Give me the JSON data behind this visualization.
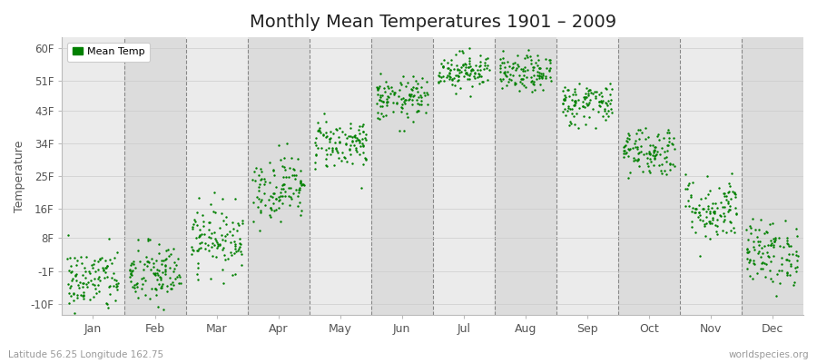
{
  "title": "Monthly Mean Temperatures 1901 – 2009",
  "ylabel": "Temperature",
  "yticks": [
    -10,
    -1,
    8,
    16,
    25,
    34,
    43,
    51,
    60
  ],
  "ytick_labels": [
    "-10F",
    "-1F",
    "8F",
    "16F",
    "25F",
    "34F",
    "43F",
    "51F",
    "60F"
  ],
  "ylim": [
    -13,
    63
  ],
  "months": [
    "Jan",
    "Feb",
    "Mar",
    "Apr",
    "May",
    "Jun",
    "Jul",
    "Aug",
    "Sep",
    "Oct",
    "Nov",
    "Dec"
  ],
  "month_centers": [
    1,
    2,
    3,
    4,
    5,
    6,
    7,
    8,
    9,
    10,
    11,
    12
  ],
  "dot_color": "#008000",
  "bg_color_light": "#ebebeb",
  "bg_color_dark": "#dcdcdc",
  "legend_label": "Mean Temp",
  "bottom_left": "Latitude 56.25 Longitude 162.75",
  "bottom_right": "worldspecies.org",
  "n_years": 109,
  "monthly_means_F": [
    -3.5,
    -2.0,
    8.0,
    22.0,
    34.0,
    46.0,
    54.0,
    53.0,
    45.0,
    32.0,
    16.0,
    4.0
  ],
  "monthly_stds_F": [
    4.5,
    4.5,
    4.5,
    4.5,
    3.5,
    3.0,
    2.5,
    2.5,
    3.0,
    3.5,
    4.5,
    4.5
  ]
}
